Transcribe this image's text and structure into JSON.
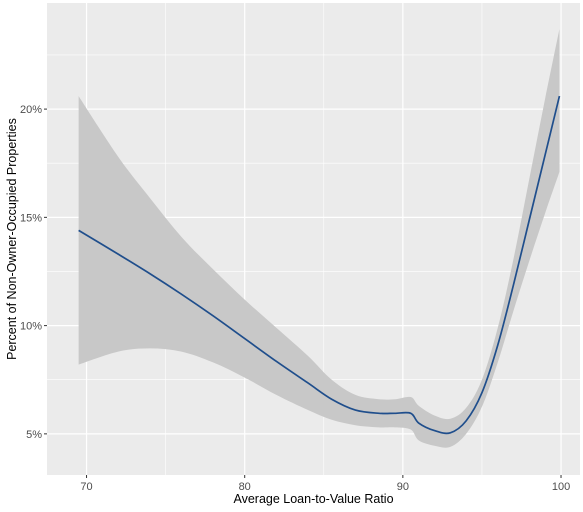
{
  "chart_data": {
    "type": "line",
    "title": "",
    "xlabel": "Average Loan-to-Value Ratio",
    "ylabel": "Percent of Non-Owner-Occupied Properties",
    "xlim": [
      67.5,
      101.2
    ],
    "ylim": [
      3.1,
      24.9
    ],
    "x_ticks": [
      70,
      80,
      90,
      100
    ],
    "x_tick_labels": [
      "70",
      "80",
      "90",
      "100"
    ],
    "y_ticks": [
      5,
      10,
      15,
      20
    ],
    "y_tick_labels": [
      "5%",
      "10%",
      "15%",
      "20%"
    ],
    "grid": true,
    "background": "#ebebeb",
    "gridline_color": "#ffffff",
    "line_color": "#1f4e8c",
    "ribbon_color": "#c8c8c8",
    "series": [
      {
        "type": "smooth-line-with-confidence-band",
        "x": [
          69.5,
          72.0,
          74.0,
          76.0,
          78.0,
          80.0,
          82.0,
          84.0,
          85.5,
          87.0,
          88.5,
          89.5,
          90.5,
          91.0,
          92.0,
          93.0,
          94.0,
          95.0,
          96.0,
          97.0,
          98.0,
          99.0,
          99.9
        ],
        "y": [
          14.4,
          13.3,
          12.4,
          11.45,
          10.45,
          9.4,
          8.35,
          7.35,
          6.6,
          6.1,
          5.95,
          5.95,
          5.95,
          5.5,
          5.15,
          5.05,
          5.6,
          6.9,
          9.1,
          11.9,
          14.9,
          17.9,
          20.6
        ],
        "lower": [
          8.2,
          8.8,
          8.95,
          8.8,
          8.3,
          7.6,
          6.8,
          6.1,
          5.65,
          5.4,
          5.3,
          5.3,
          5.2,
          4.7,
          4.45,
          4.4,
          5.0,
          6.25,
          8.3,
          10.7,
          13.0,
          15.2,
          17.1
        ],
        "upper": [
          20.6,
          17.8,
          15.9,
          14.1,
          12.6,
          11.2,
          9.9,
          8.6,
          7.5,
          6.8,
          6.6,
          6.6,
          6.7,
          6.3,
          5.85,
          5.7,
          6.2,
          7.5,
          9.9,
          13.1,
          16.8,
          20.5,
          23.7
        ]
      }
    ]
  }
}
